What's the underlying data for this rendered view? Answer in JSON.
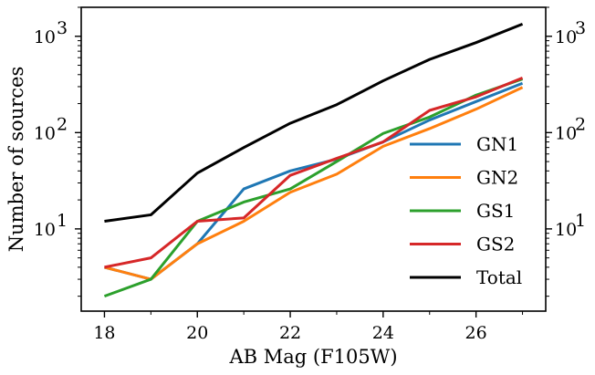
{
  "chart_data": {
    "type": "line",
    "xlabel": "AB Mag (F105W)",
    "ylabel": "Number of sources",
    "x": [
      18,
      19,
      20,
      21,
      22,
      23,
      24,
      25,
      26,
      27
    ],
    "xlim": [
      17.5,
      27.5
    ],
    "ylim": [
      1.4,
      2000
    ],
    "yscale": "log",
    "grid": false,
    "legend_position": "lower-right",
    "x_ticks": [
      18,
      20,
      22,
      24,
      26
    ],
    "x_tick_labels": [
      "18",
      "20",
      "22",
      "24",
      "26"
    ],
    "y_ticks": [
      10,
      100,
      1000
    ],
    "y_tick_exponents": [
      "1",
      "2",
      "3"
    ],
    "y_tick_base": "10",
    "series": [
      {
        "name": "GN1",
        "color": "#1f77b4",
        "values": [
          4,
          3,
          7,
          26,
          40,
          53,
          80,
          135,
          210,
          325
        ]
      },
      {
        "name": "GN2",
        "color": "#ff7f0e",
        "values": [
          4,
          3,
          7,
          12,
          24,
          37,
          72,
          110,
          175,
          295
        ]
      },
      {
        "name": "GS1",
        "color": "#2ca02c",
        "values": [
          2,
          3,
          12,
          19,
          26,
          50,
          98,
          145,
          245,
          360
        ]
      },
      {
        "name": "GS2",
        "color": "#d62728",
        "values": [
          4,
          5,
          12,
          13,
          36,
          54,
          80,
          170,
          235,
          370
        ]
      },
      {
        "name": "Total",
        "color": "#000000",
        "values": [
          12,
          14,
          38,
          70,
          125,
          195,
          345,
          575,
          860,
          1340
        ]
      }
    ]
  }
}
